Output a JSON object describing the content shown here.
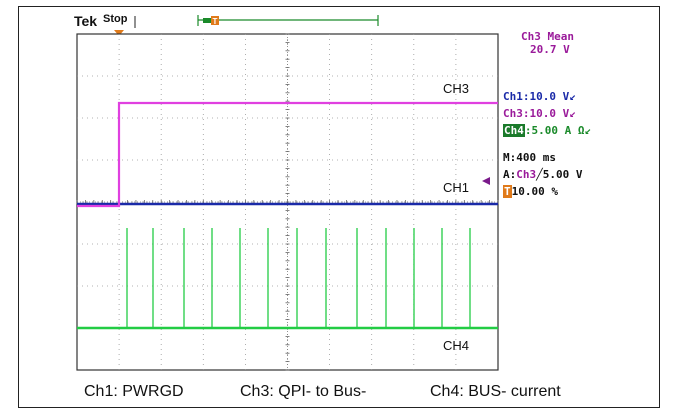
{
  "header": {
    "brand": "Tek",
    "status": "Stop"
  },
  "measurement": {
    "title": "Ch3 Mean",
    "value": "20.7 V"
  },
  "settings": {
    "ch1": "Ch1:10.0 V",
    "ch3": "Ch3:10.0 V",
    "ch4_tag": "Ch4",
    "ch4_rest": ":5.00 A Ω",
    "bw_symbol": "↙",
    "timebase": "M:400 ms",
    "trigger_prefix": "A:",
    "trigger_source": "Ch3",
    "trigger_slope": "╱",
    "trigger_level": "5.00 V",
    "trigger_pos_tag": "T",
    "trigger_pos_value": "10.00 %"
  },
  "traces": {
    "ch3_label": "CH3",
    "ch1_label": "CH1",
    "ch4_label": "CH4"
  },
  "captions": {
    "ch1": "Ch1: PWRGD",
    "ch3": "Ch3: QPI- to Bus-",
    "ch4": "Ch4: BUS- current"
  },
  "colors": {
    "ch1": "#1a2aa8",
    "ch3": "#e040e0",
    "ch4": "#22cc44",
    "trigger": "#e07a1a",
    "measure": "#9a1a9a",
    "ch4_green": "#1a8a2a"
  }
}
